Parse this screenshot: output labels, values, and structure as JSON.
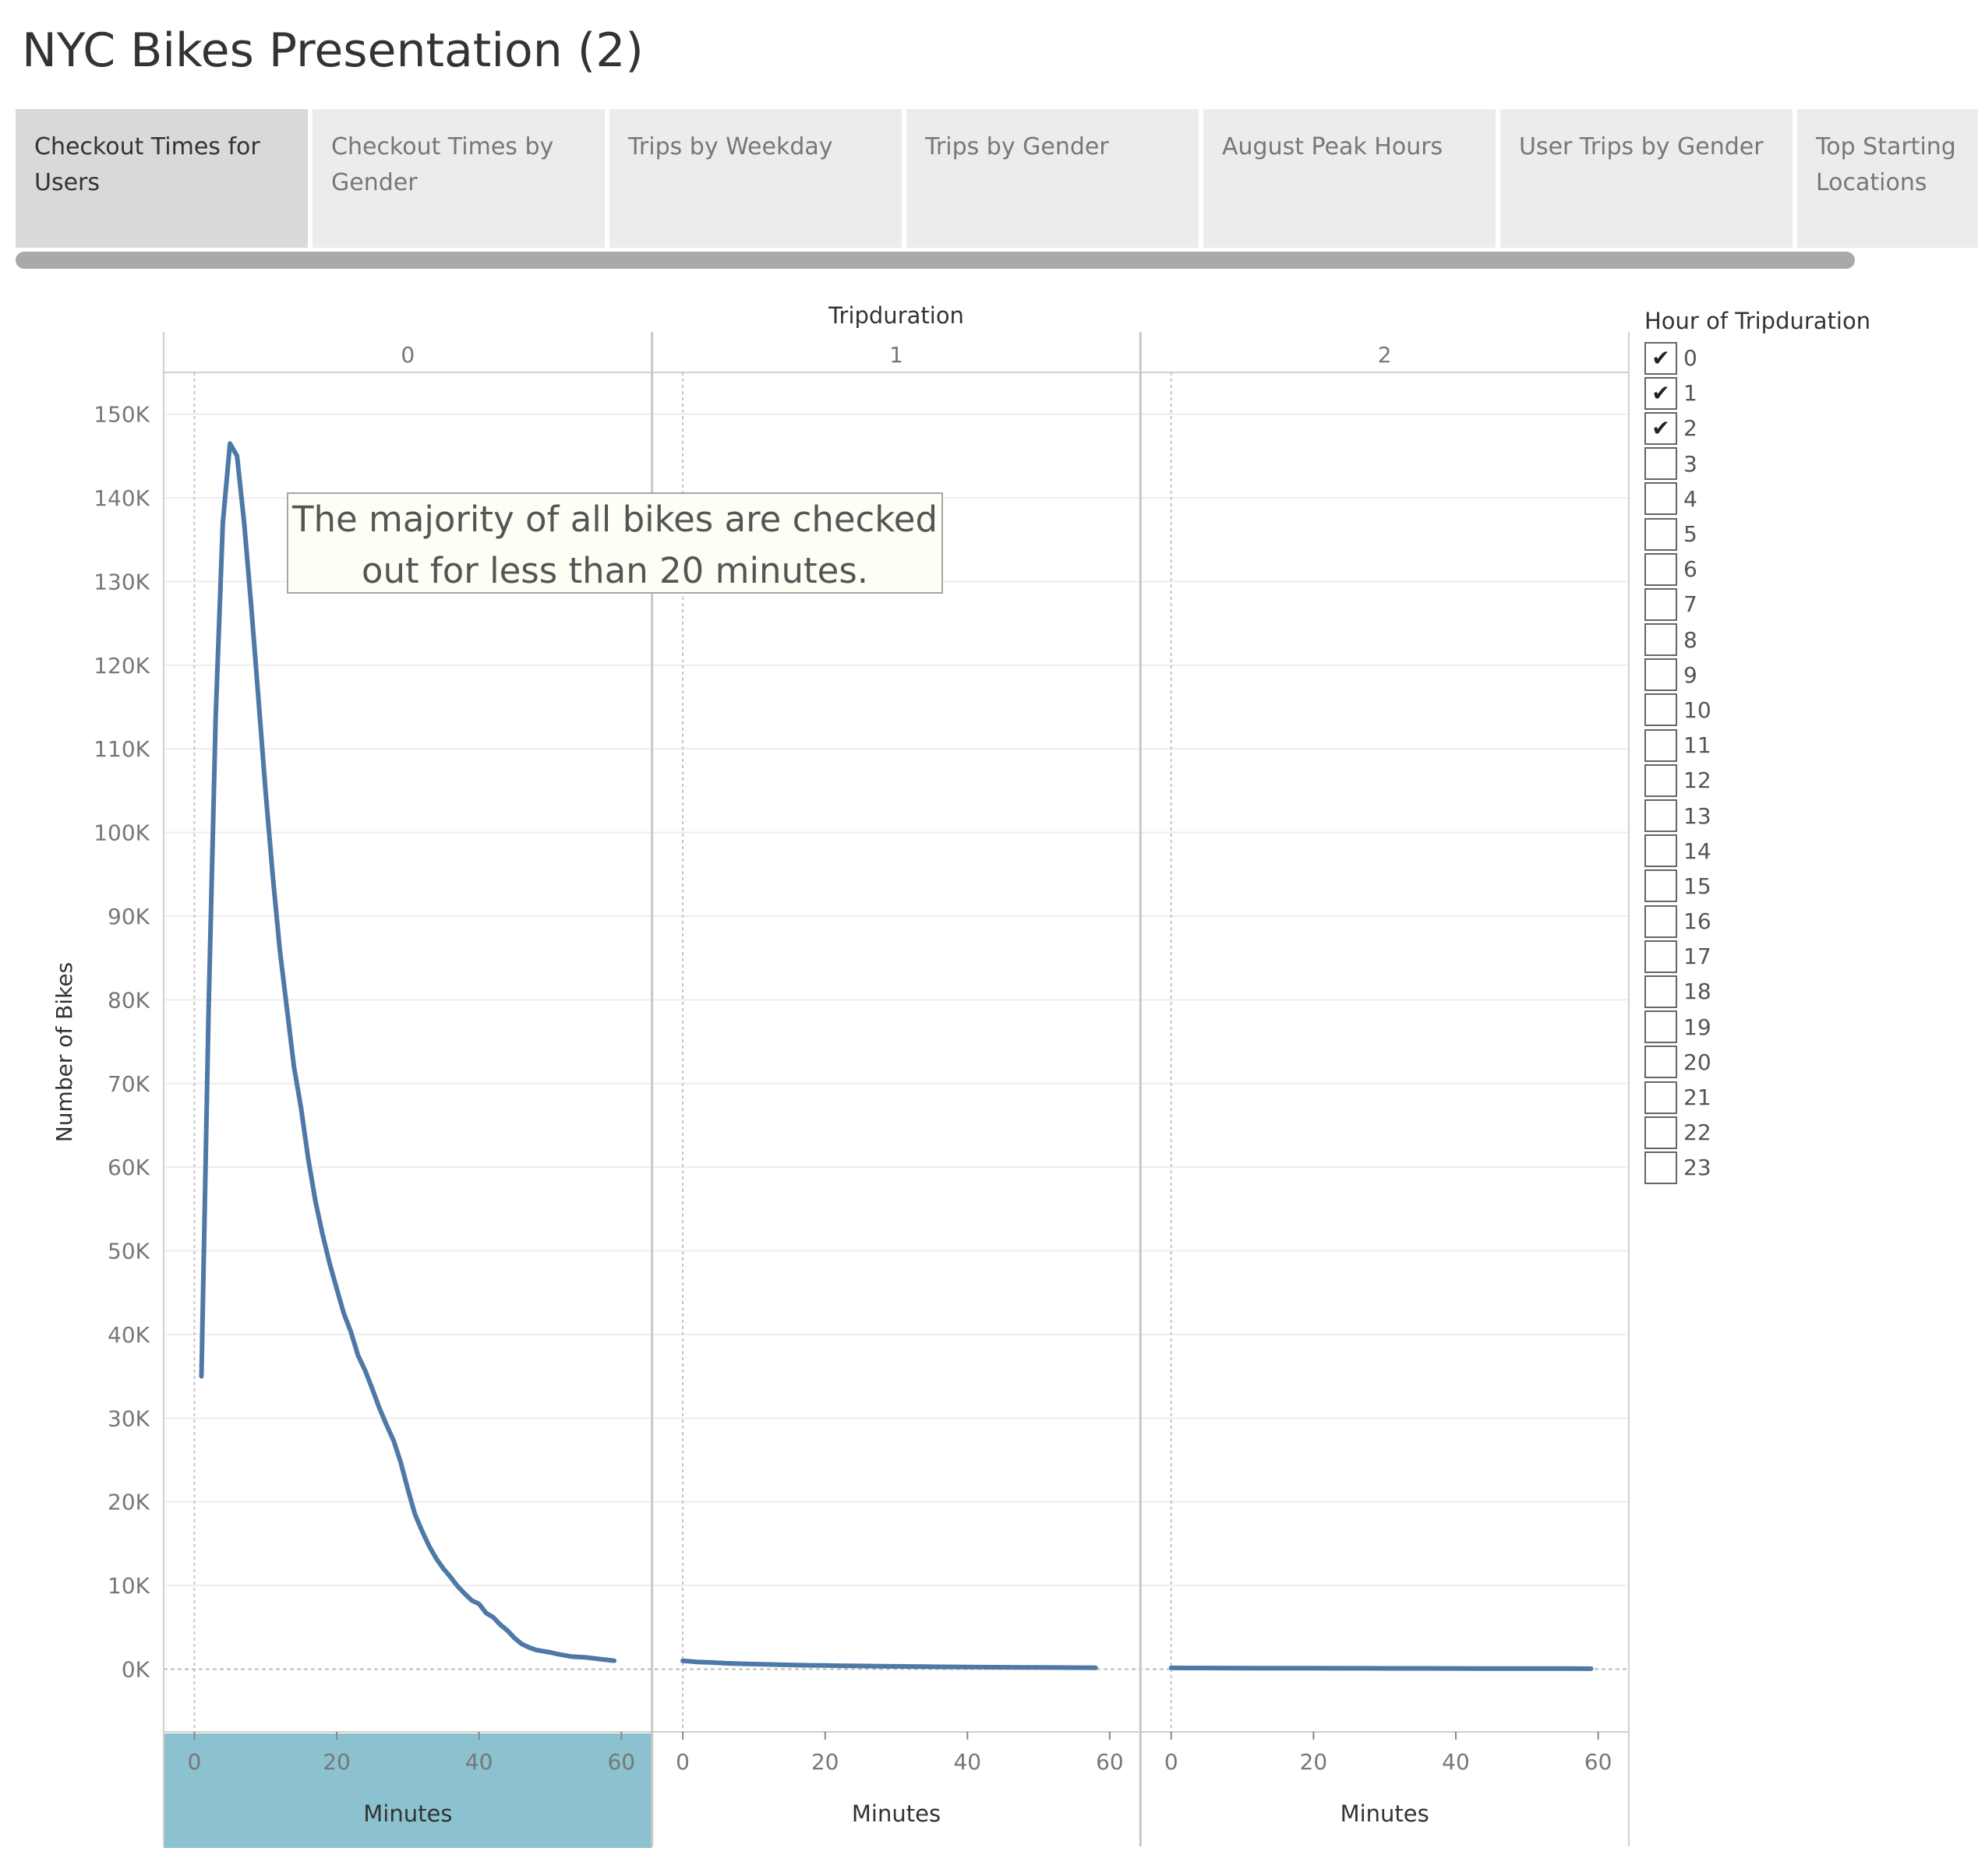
{
  "title": "NYC Bikes Presentation (2)",
  "tabs": [
    {
      "label": "Checkout Times for Users",
      "active": true
    },
    {
      "label": "Checkout Times by Gender",
      "active": false
    },
    {
      "label": "Trips by Weekday",
      "active": false
    },
    {
      "label": "Trips by Gender",
      "active": false
    },
    {
      "label": "August Peak Hours",
      "active": false
    },
    {
      "label": "User Trips by Gender",
      "active": false
    },
    {
      "label": "Top Starting Locations",
      "active": false
    }
  ],
  "annotation": "The majority of all bikes are checked out for less than 20 minutes.",
  "legend": {
    "title": "Hour of Tripduration",
    "items": [
      {
        "label": "0",
        "checked": true
      },
      {
        "label": "1",
        "checked": true
      },
      {
        "label": "2",
        "checked": true
      },
      {
        "label": "3",
        "checked": false
      },
      {
        "label": "4",
        "checked": false
      },
      {
        "label": "5",
        "checked": false
      },
      {
        "label": "6",
        "checked": false
      },
      {
        "label": "7",
        "checked": false
      },
      {
        "label": "8",
        "checked": false
      },
      {
        "label": "9",
        "checked": false
      },
      {
        "label": "10",
        "checked": false
      },
      {
        "label": "11",
        "checked": false
      },
      {
        "label": "12",
        "checked": false
      },
      {
        "label": "13",
        "checked": false
      },
      {
        "label": "14",
        "checked": false
      },
      {
        "label": "15",
        "checked": false
      },
      {
        "label": "16",
        "checked": false
      },
      {
        "label": "17",
        "checked": false
      },
      {
        "label": "18",
        "checked": false
      },
      {
        "label": "19",
        "checked": false
      },
      {
        "label": "20",
        "checked": false
      },
      {
        "label": "21",
        "checked": false
      },
      {
        "label": "22",
        "checked": false
      },
      {
        "label": "23",
        "checked": false
      }
    ]
  },
  "colors": {
    "line": "#4e79a7",
    "selected_panel": "#8cc2cf",
    "annotation_bg": "#fefef5"
  },
  "chart_data": {
    "type": "line",
    "title": "",
    "column_header": "Tripduration",
    "xlabel": "Minutes",
    "ylabel": "Number of Bikes",
    "ylim": [
      -7500,
      155000
    ],
    "yticks": [
      "0K",
      "10K",
      "20K",
      "30K",
      "40K",
      "50K",
      "60K",
      "70K",
      "80K",
      "90K",
      "100K",
      "110K",
      "120K",
      "130K",
      "140K",
      "150K"
    ],
    "ytick_values": [
      0,
      10000,
      20000,
      30000,
      40000,
      50000,
      60000,
      70000,
      80000,
      90000,
      100000,
      110000,
      120000,
      130000,
      140000,
      150000
    ],
    "xlim": [
      -3,
      63
    ],
    "xticks": [
      0,
      20,
      40,
      60
    ],
    "grid": true,
    "panels": [
      {
        "header": "0",
        "selected": true,
        "x": [
          1,
          2,
          3,
          4,
          5,
          6,
          7,
          8,
          9,
          10,
          11,
          12,
          13,
          14,
          15,
          16,
          17,
          18,
          19,
          20,
          21,
          22,
          23,
          24,
          25,
          26,
          27,
          28,
          29,
          30,
          31,
          32,
          33,
          34,
          35,
          36,
          37,
          38,
          39,
          40,
          41,
          42,
          43,
          44,
          45,
          46,
          47,
          48,
          49,
          50,
          51,
          52,
          53,
          54,
          55,
          56,
          57,
          58,
          59
        ],
        "values": [
          35000,
          79000,
          114000,
          137000,
          146500,
          145000,
          137000,
          127000,
          116000,
          105000,
          95000,
          86000,
          79000,
          72000,
          67000,
          61000,
          56000,
          52000,
          48500,
          45500,
          42500,
          40300,
          37500,
          35700,
          33500,
          31200,
          29200,
          27300,
          24700,
          21500,
          18500,
          16500,
          14700,
          13200,
          12000,
          11000,
          9900,
          9000,
          8200,
          7800,
          6700,
          6200,
          5300,
          4600,
          3700,
          3000,
          2600,
          2300,
          2150,
          2000,
          1800,
          1650,
          1500,
          1450,
          1400,
          1300,
          1200,
          1100,
          1000
        ]
      },
      {
        "header": "1",
        "selected": false,
        "x": [
          0,
          2,
          4,
          6,
          8,
          10,
          12,
          14,
          16,
          18,
          20,
          22,
          24,
          26,
          28,
          30,
          32,
          34,
          36,
          38,
          40,
          42,
          44,
          46,
          48,
          50,
          52,
          54,
          56,
          58
        ],
        "values": [
          1000,
          850,
          800,
          700,
          650,
          600,
          560,
          520,
          480,
          450,
          430,
          410,
          390,
          370,
          350,
          330,
          310,
          290,
          280,
          265,
          250,
          240,
          230,
          220,
          210,
          200,
          190,
          180,
          170,
          160
        ]
      },
      {
        "header": "2",
        "selected": false,
        "x": [
          0,
          4,
          8,
          12,
          16,
          20,
          24,
          28,
          32,
          36,
          40,
          44,
          48,
          52,
          56,
          59
        ],
        "values": [
          150,
          140,
          130,
          120,
          115,
          110,
          100,
          95,
          90,
          85,
          80,
          75,
          70,
          65,
          60,
          55
        ]
      }
    ]
  }
}
